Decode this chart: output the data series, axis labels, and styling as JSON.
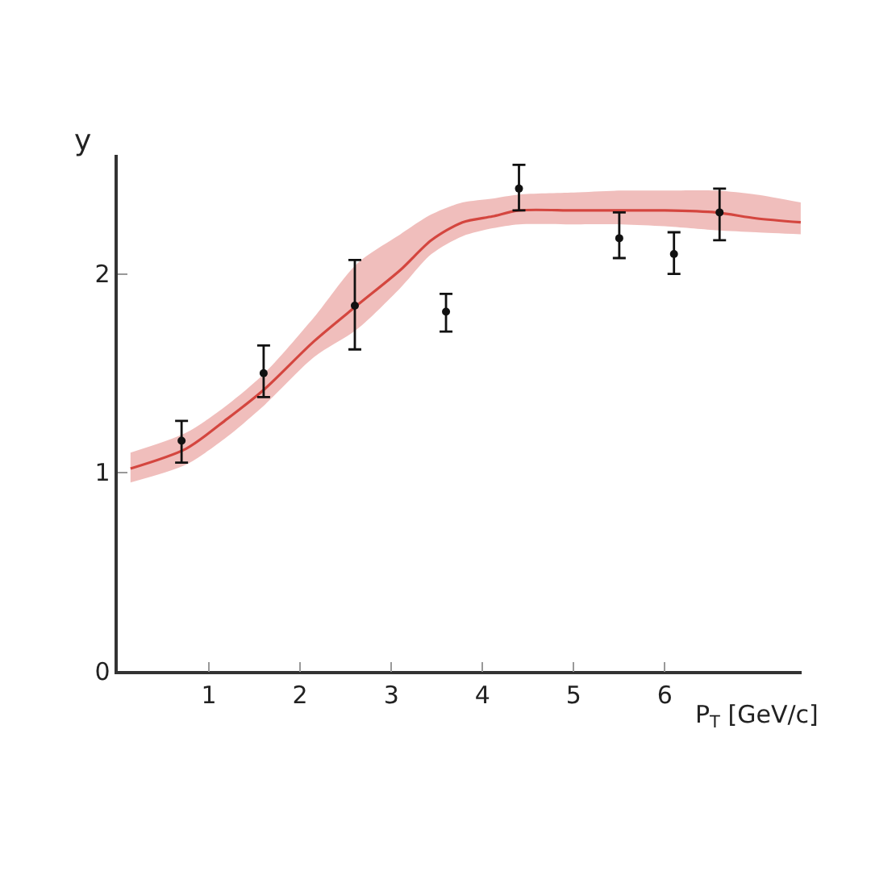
{
  "chart_data": {
    "type": "scatter",
    "xlabel": "P$_{T}$ [GeV/c]",
    "ylabel": "y",
    "xlim": [
      0,
      7.5
    ],
    "ylim": [
      0,
      2.6
    ],
    "xticks": [
      1,
      2,
      3,
      4,
      5,
      6
    ],
    "yticks": [
      0,
      1,
      2
    ],
    "grid": false,
    "series": [
      {
        "type": "line",
        "color": "#d4463f",
        "marker": "none",
        "x": [
          0.14,
          0.75,
          1.2,
          1.61,
          2.15,
          2.62,
          3.1,
          3.44,
          3.78,
          4.11,
          4.4,
          5.0,
          5.53,
          6.0,
          6.56,
          7.0,
          7.49
        ],
        "values": [
          1.02,
          1.12,
          1.27,
          1.42,
          1.66,
          1.84,
          2.02,
          2.17,
          2.26,
          2.29,
          2.32,
          2.32,
          2.32,
          2.32,
          2.31,
          2.28,
          2.26
        ],
        "lower": [
          0.95,
          1.04,
          1.18,
          1.34,
          1.58,
          1.72,
          1.93,
          2.1,
          2.19,
          2.23,
          2.25,
          2.25,
          2.25,
          2.24,
          2.22,
          2.21,
          2.2
        ],
        "upper": [
          1.1,
          1.2,
          1.34,
          1.5,
          1.78,
          2.05,
          2.2,
          2.3,
          2.36,
          2.38,
          2.4,
          2.41,
          2.42,
          2.42,
          2.42,
          2.4,
          2.36
        ]
      },
      {
        "color": "#111111",
        "marker": "circle",
        "x": [
          0.7,
          1.6,
          2.6,
          3.6,
          4.4,
          5.5,
          6.1,
          6.6
        ],
        "values": [
          1.16,
          1.5,
          1.84,
          1.81,
          2.43,
          2.18,
          2.1,
          2.31
        ],
        "errors": [
          [
            1.05,
            1.26
          ],
          [
            1.38,
            1.64
          ],
          [
            1.62,
            2.07
          ],
          [
            1.71,
            1.9
          ],
          [
            2.32,
            2.55
          ],
          [
            2.08,
            2.31
          ],
          [
            2.0,
            2.21
          ],
          [
            2.17,
            2.43
          ]
        ]
      }
    ]
  }
}
